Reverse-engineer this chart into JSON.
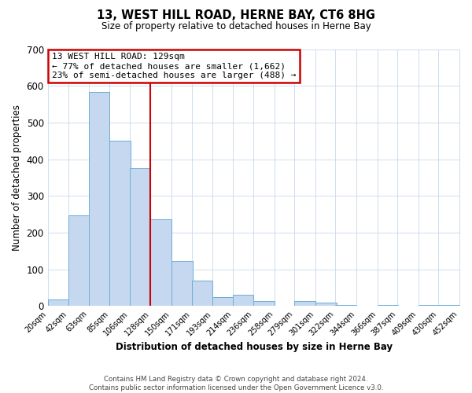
{
  "title": "13, WEST HILL ROAD, HERNE BAY, CT6 8HG",
  "subtitle": "Size of property relative to detached houses in Herne Bay",
  "xlabel": "Distribution of detached houses by size in Herne Bay",
  "ylabel": "Number of detached properties",
  "bar_left_edges": [
    20,
    42,
    63,
    85,
    106,
    128,
    150,
    171,
    193,
    214,
    236,
    258,
    279,
    301,
    322,
    344,
    366,
    387,
    409,
    430
  ],
  "bar_heights": [
    18,
    247,
    583,
    450,
    375,
    237,
    122,
    68,
    25,
    31,
    13,
    0,
    13,
    10,
    3,
    0,
    3,
    0,
    3,
    3
  ],
  "bin_width": 22,
  "tick_labels": [
    "20sqm",
    "42sqm",
    "63sqm",
    "85sqm",
    "106sqm",
    "128sqm",
    "150sqm",
    "171sqm",
    "193sqm",
    "214sqm",
    "236sqm",
    "258sqm",
    "279sqm",
    "301sqm",
    "322sqm",
    "344sqm",
    "366sqm",
    "387sqm",
    "409sqm",
    "430sqm",
    "452sqm"
  ],
  "tick_positions": [
    20,
    42,
    63,
    85,
    106,
    128,
    150,
    171,
    193,
    214,
    236,
    258,
    279,
    301,
    322,
    344,
    366,
    387,
    409,
    430,
    452
  ],
  "bar_color": "#C5D8F0",
  "bar_edge_color": "#6BAED6",
  "marker_x": 128,
  "marker_label_line1": "13 WEST HILL ROAD: 129sqm",
  "marker_label_line2": "← 77% of detached houses are smaller (1,662)",
  "marker_label_line3": "23% of semi-detached houses are larger (488) →",
  "marker_color": "#CC0000",
  "ylim": [
    0,
    700
  ],
  "yticks": [
    0,
    100,
    200,
    300,
    400,
    500,
    600,
    700
  ],
  "xlim": [
    20,
    453
  ],
  "background_color": "#FFFFFF",
  "grid_color": "#C8D8EC",
  "footer_line1": "Contains HM Land Registry data © Crown copyright and database right 2024.",
  "footer_line2": "Contains public sector information licensed under the Open Government Licence v3.0."
}
